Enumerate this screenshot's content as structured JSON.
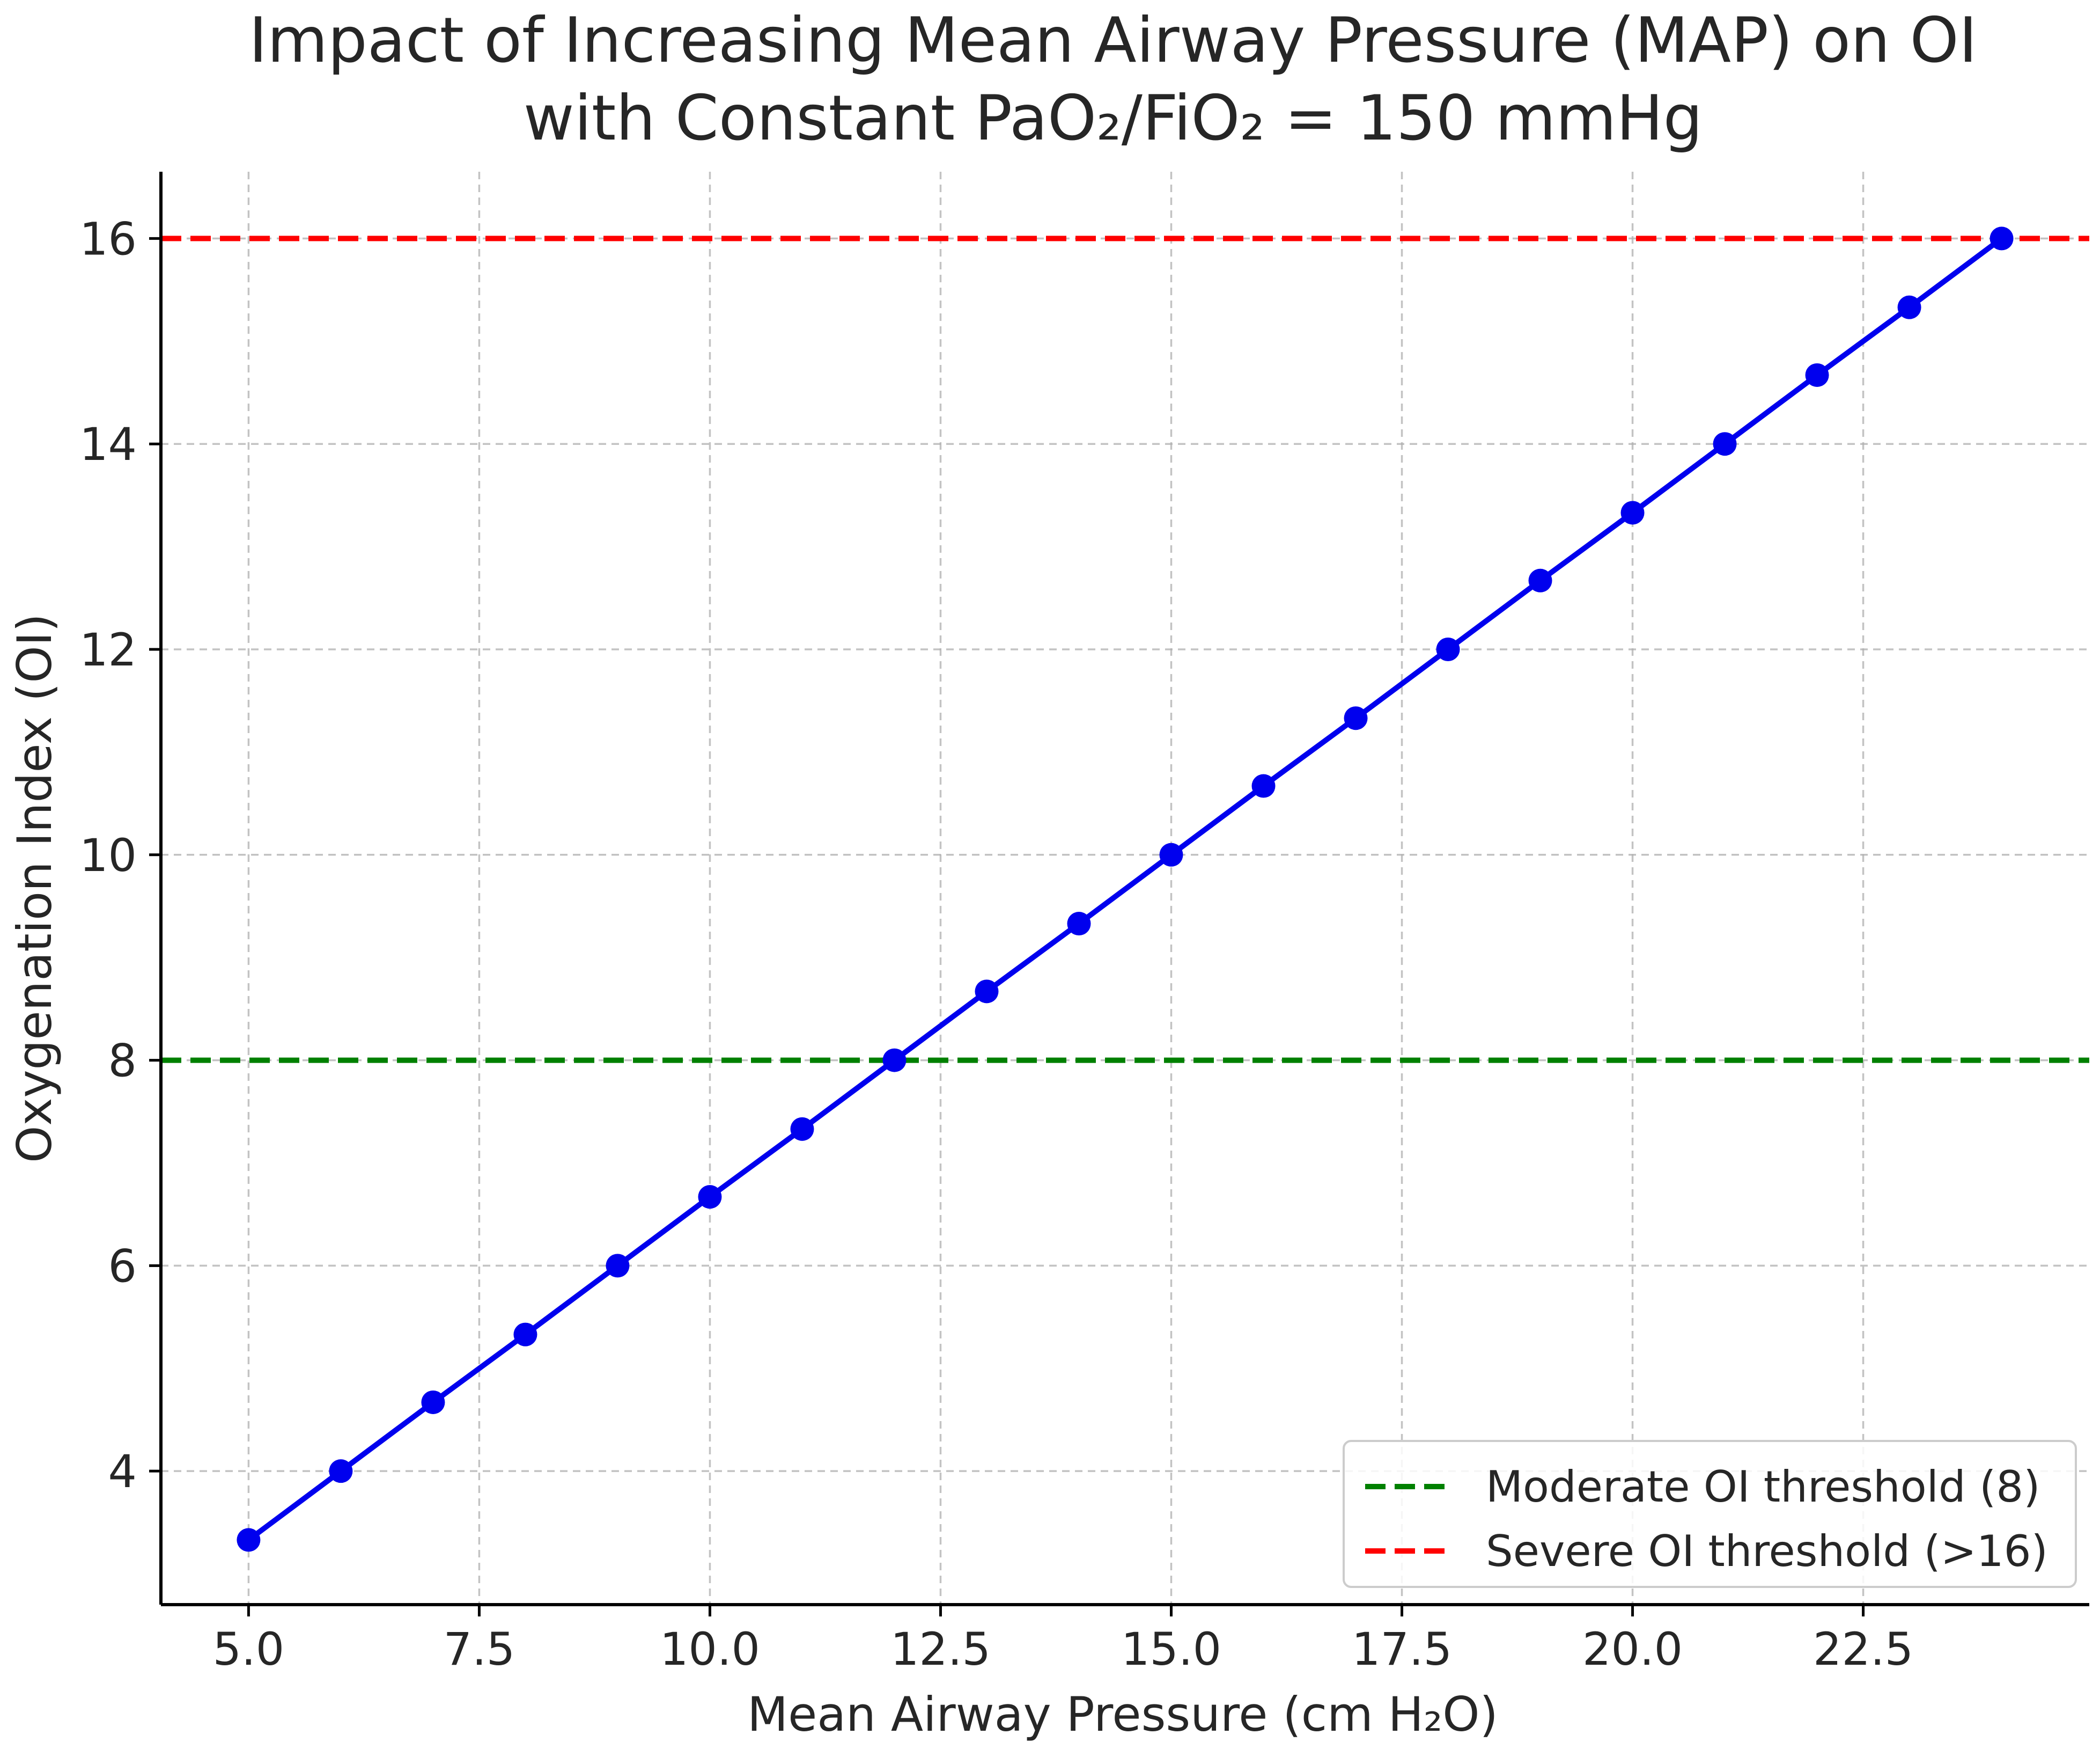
{
  "chart_data": {
    "type": "line",
    "title_lines": [
      "Impact of Increasing Mean Airway Pressure (MAP) on OI",
      "with Constant PaO₂/FiO₂ = 150 mmHg"
    ],
    "xlabel": "Mean Airway Pressure (cm H₂O)",
    "ylabel": "Oxygenation Index (OI)",
    "xlim": [
      4.05,
      24.95
    ],
    "ylim": [
      2.7,
      16.65
    ],
    "xticks": [
      5.0,
      7.5,
      10.0,
      12.5,
      15.0,
      17.5,
      20.0,
      22.5
    ],
    "xtick_labels": [
      "5.0",
      "7.5",
      "10.0",
      "12.5",
      "15.0",
      "17.5",
      "20.0",
      "22.5"
    ],
    "yticks": [
      4,
      6,
      8,
      10,
      12,
      14,
      16
    ],
    "ytick_labels": [
      "4",
      "6",
      "8",
      "10",
      "12",
      "14",
      "16"
    ],
    "grid": true,
    "series": [
      {
        "name": "OI",
        "color": "#0000ee",
        "marker": "circle",
        "x": [
          5,
          6,
          7,
          8,
          9,
          10,
          11,
          12,
          13,
          14,
          15,
          16,
          17,
          18,
          19,
          20,
          21,
          22,
          23,
          24
        ],
        "y": [
          3.33,
          4.0,
          4.67,
          5.33,
          6.0,
          6.67,
          7.33,
          8.0,
          8.67,
          9.33,
          10.0,
          10.67,
          11.33,
          12.0,
          12.67,
          13.33,
          14.0,
          14.67,
          15.33,
          16.0
        ]
      }
    ],
    "reference_lines": [
      {
        "name": "Moderate OI threshold (8)",
        "y": 8,
        "color": "#008000",
        "style": "dashed"
      },
      {
        "name": "Severe OI threshold (>16)",
        "y": 16,
        "color": "#ff0000",
        "style": "dashed"
      }
    ],
    "legend": {
      "location": "lower-right",
      "entries": [
        "Moderate OI threshold (8)",
        "Severe OI threshold (>16)"
      ]
    }
  }
}
